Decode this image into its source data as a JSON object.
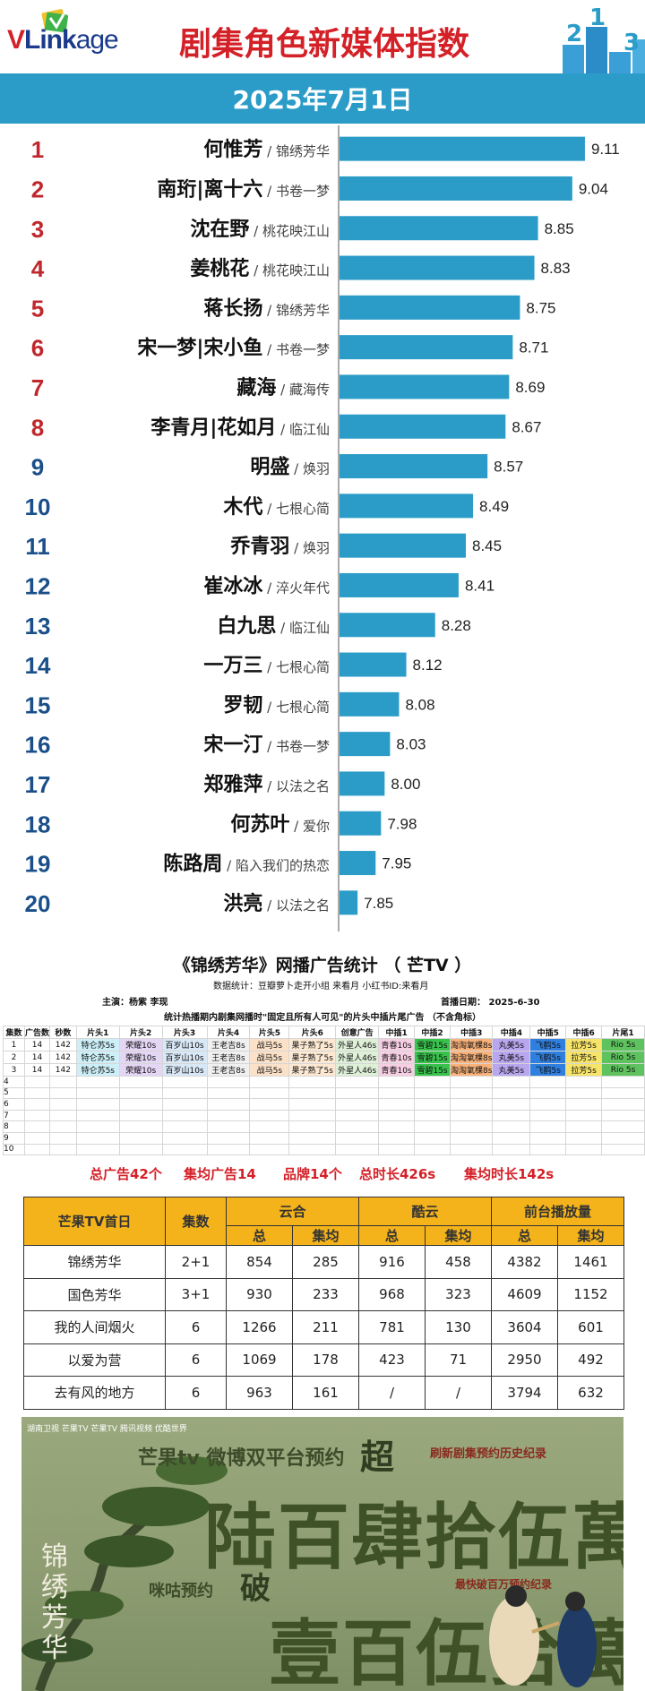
{
  "header": {
    "logo_prefix": "V",
    "logo_main": "Link",
    "logo_suffix": "age",
    "title": "剧集角色新媒体指数",
    "date": "2025年7月1日",
    "deco_digits": [
      "2",
      "1",
      "3"
    ]
  },
  "colors": {
    "bar": "#2b9cc8",
    "rank": "#c0272d",
    "rank_alt": "#1a4f8a",
    "gold": "#f4b31a",
    "red": "#d42027"
  },
  "chart_data": {
    "type": "bar",
    "orientation": "horizontal",
    "ranks": [
      "1",
      "2",
      "3",
      "4",
      "5",
      "6",
      "7",
      "8",
      "9",
      "10",
      "11",
      "12",
      "13",
      "14",
      "15",
      "16",
      "17",
      "18",
      "19",
      "20"
    ],
    "names": [
      "何惟芳",
      "南珩|离十六",
      "沈在野",
      "姜桃花",
      "蒋长扬",
      "宋一梦|宋小鱼",
      "藏海",
      "李青月|花如月",
      "明盛",
      "木代",
      "乔青羽",
      "崔冰冰",
      "白九思",
      "一万三",
      "罗韧",
      "宋一汀",
      "郑雅萍",
      "何苏叶",
      "陈路周",
      "洪亮"
    ],
    "shows": [
      "锦绣芳华",
      "书卷一梦",
      "桃花映江山",
      "桃花映江山",
      "锦绣芳华",
      "书卷一梦",
      "藏海传",
      "临江仙",
      "焕羽",
      "七根心简",
      "焕羽",
      "淬火年代",
      "临江仙",
      "七根心简",
      "七根心简",
      "书卷一梦",
      "以法之名",
      "爱你",
      "陷入我们的热恋",
      "以法之名"
    ],
    "values": [
      9.11,
      9.04,
      8.85,
      8.83,
      8.75,
      8.71,
      8.69,
      8.67,
      8.57,
      8.49,
      8.45,
      8.41,
      8.28,
      8.12,
      8.08,
      8.03,
      8.0,
      7.98,
      7.95,
      7.85
    ],
    "value_labels": [
      "9.11",
      "9.04",
      "8.85",
      "8.83",
      "8.75",
      "8.71",
      "8.69",
      "8.67",
      "8.57",
      "8.49",
      "8.45",
      "8.41",
      "8.28",
      "8.12",
      "8.08",
      "8.03",
      "8.00",
      "7.98",
      "7.95",
      "7.85"
    ],
    "xlim": [
      7.75,
      9.15
    ]
  },
  "ad_stats": {
    "title": "《锦绣芳华》网播广告统计 （ 芒TV ）",
    "stat_line": "数据统计：豆瓣萝卜走开小组 来看月      小红书ID:来看月",
    "cast": "主演：杨紫  李现",
    "air_date": "首播日期：  2025-6-30",
    "note": "统计热播期内剧集网播时\"固定且所有人可见\"的片头中插片尾广告 （不含角标）",
    "headers": [
      "集数",
      "广告数",
      "秒数",
      "片头1",
      "片头2",
      "片头3",
      "片头4",
      "片头5",
      "片头6",
      "创意广告",
      "中插1",
      "中插2",
      "中插3",
      "中插4",
      "中插5",
      "中插6",
      "片尾1"
    ],
    "rows": [
      [
        "1",
        "14",
        "142",
        "特仑苏5s",
        "荣耀10s",
        "百岁山10s",
        "王老吉8s",
        "战马5s",
        "果子熟了5s",
        "外星人46s",
        "青春10s",
        "雪碧15s",
        "淘淘氧棵8s",
        "丸美5s",
        "飞鹤5s",
        "拉芳5s",
        "Rio 5s"
      ],
      [
        "2",
        "14",
        "142",
        "特仑苏5s",
        "荣耀10s",
        "百岁山10s",
        "王老吉8s",
        "战马5s",
        "果子熟了5s",
        "外星人46s",
        "青春10s",
        "雪碧15s",
        "淘淘氧棵8s",
        "丸美5s",
        "飞鹤5s",
        "拉芳5s",
        "Rio 5s"
      ],
      [
        "3",
        "14",
        "142",
        "特仑苏5s",
        "荣耀10s",
        "百岁山10s",
        "王老吉8s",
        "战马5s",
        "果子熟了5s",
        "外星人46s",
        "青春10s",
        "雪碧15s",
        "淘淘氧棵8s",
        "丸美5s",
        "飞鹤5s",
        "拉芳5s",
        "Rio 5s"
      ]
    ],
    "empty_rows": [
      "4",
      "5",
      "6",
      "7",
      "8",
      "9",
      "10"
    ],
    "cell_colors": [
      "#ffffff",
      "#ffffff",
      "#ffffff",
      "#cdeff7",
      "#e4d6f5",
      "#d9e8f7",
      "#f0f0f0",
      "#fbe1c8",
      "#fde9d3",
      "#dff0d8",
      "#f7cfe3",
      "#37c24c",
      "#f8b27a",
      "#b8a6ee",
      "#2f7fe0",
      "#f7e46a",
      "#5ec25e"
    ],
    "summary": [
      "总广告42个",
      "集均广告14",
      "品牌14个",
      "总时长426s",
      "集均时长142s"
    ]
  },
  "mango_table": {
    "header_col1": "芒果TV首日",
    "header_col2": "集数",
    "group_headers": [
      "云合",
      "酷云",
      "前台播放量"
    ],
    "sub_headers": [
      "总",
      "集均",
      "总",
      "集均",
      "总",
      "集均"
    ],
    "rows": [
      [
        "锦绣芳华",
        "2+1",
        "854",
        "285",
        "916",
        "458",
        "4382",
        "1461"
      ],
      [
        "国色芳华",
        "3+1",
        "930",
        "233",
        "968",
        "323",
        "4609",
        "1152"
      ],
      [
        "我的人间烟火",
        "6",
        "1266",
        "211",
        "781",
        "130",
        "3604",
        "601"
      ],
      [
        "以爱为营",
        "6",
        "1069",
        "178",
        "423",
        "71",
        "2950",
        "492"
      ],
      [
        "去有风的地方",
        "6",
        "963",
        "161",
        "/",
        "/",
        "3794",
        "632"
      ]
    ]
  },
  "poster": {
    "channels": [
      "湖南卫视",
      "芒果TV",
      "芒果TV",
      "腾讯视频",
      "优酷世界"
    ],
    "line1": "芒果tv 微博双平台预约",
    "chao": "超",
    "big1": "陆百肆拾伍萬",
    "record": "刷新剧集预约历史纪录",
    "poster_title": "锦绣芳华",
    "weigu": "咪咕预约",
    "po": "破",
    "big2": "壹百伍拾萬",
    "fastest": "最快破百万预约纪录"
  }
}
